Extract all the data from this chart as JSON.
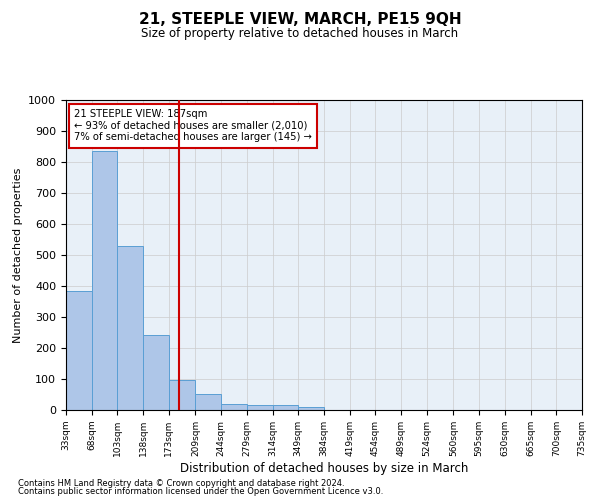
{
  "title": "21, STEEPLE VIEW, MARCH, PE15 9QH",
  "subtitle": "Size of property relative to detached houses in March",
  "xlabel": "Distribution of detached houses by size in March",
  "ylabel": "Number of detached properties",
  "footnote1": "Contains HM Land Registry data © Crown copyright and database right 2024.",
  "footnote2": "Contains public sector information licensed under the Open Government Licence v3.0.",
  "annotation_line1": "21 STEEPLE VIEW: 187sqm",
  "annotation_line2": "← 93% of detached houses are smaller (2,010)",
  "annotation_line3": "7% of semi-detached houses are larger (145) →",
  "bar_edges": [
    33,
    68,
    103,
    138,
    173,
    209,
    244,
    279,
    314,
    349,
    384,
    419,
    454,
    489,
    524,
    560,
    595,
    630,
    665,
    700,
    735
  ],
  "bar_heights": [
    385,
    835,
    530,
    242,
    97,
    52,
    20,
    17,
    16,
    11,
    0,
    0,
    0,
    0,
    0,
    0,
    0,
    0,
    0,
    0
  ],
  "red_line_x": 187,
  "bar_color": "#aec6e8",
  "bar_edge_color": "#5a9fd4",
  "red_line_color": "#cc0000",
  "annotation_box_color": "#cc0000",
  "grid_color": "#cccccc",
  "bg_color": "#e8f0f8",
  "ylim": [
    0,
    1000
  ],
  "yticks": [
    0,
    100,
    200,
    300,
    400,
    500,
    600,
    700,
    800,
    900,
    1000
  ]
}
